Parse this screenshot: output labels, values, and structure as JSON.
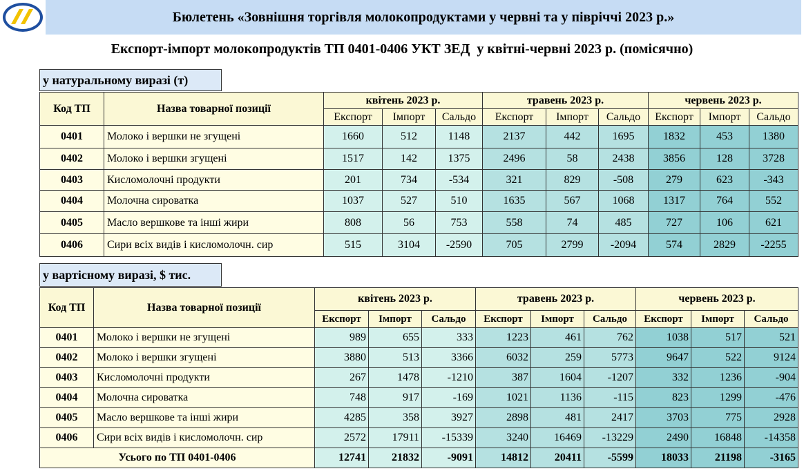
{
  "header": {
    "title": "Бюлетень «Зовнішня торгівля молокопродуктами у червні та у півріччі 2023 р.»"
  },
  "subtitle": "Експорт-імпорт молокопродуктів ТП 0401-0406 УКТ ЗЕД  у квітні-червні 2023 р. (помісячно)",
  "tables": [
    {
      "label": "у натуральному виразі (т)",
      "code_header": "Код ТП",
      "name_header": "Назва товарної позиції",
      "months": [
        "квітень 2023 р.",
        "травень 2023 р.",
        "червень 2023 р."
      ],
      "subcolumns": [
        "Експорт",
        "Імпорт",
        "Сальдо"
      ],
      "rows": [
        [
          "0401",
          "Молоко і вершки не згущені",
          1660,
          512,
          1148,
          2137,
          442,
          1695,
          1832,
          453,
          1380
        ],
        [
          "0402",
          "Молоко і вершки згущені",
          1517,
          142,
          1375,
          2496,
          58,
          2438,
          3856,
          128,
          3728
        ],
        [
          "0403",
          "Кисломолочні продукти",
          201,
          734,
          -534,
          321,
          829,
          -508,
          279,
          623,
          -343
        ],
        [
          "0404",
          "Молочна сироватка",
          1037,
          527,
          510,
          1635,
          567,
          1068,
          1317,
          764,
          552
        ],
        [
          "0405",
          "Масло вершкове та інші жири",
          808,
          56,
          753,
          558,
          74,
          485,
          727,
          106,
          621
        ],
        [
          "0406",
          "Сири всіх видів і кисломолочн. сир",
          515,
          3104,
          -2590,
          705,
          2799,
          -2094,
          574,
          2829,
          -2255
        ]
      ]
    },
    {
      "label": "у вартісному виразі, $ тис.",
      "code_header": "Код ТП",
      "name_header": "Назва товарної позиції",
      "months": [
        "квітень 2023 р.",
        "травень 2023 р.",
        "червень 2023 р."
      ],
      "subcolumns": [
        "Експорт",
        "Імпорт",
        "Сальдо"
      ],
      "rows": [
        [
          "0401",
          "Молоко і вершки не згущені",
          989,
          655,
          333,
          1223,
          461,
          762,
          1038,
          517,
          521
        ],
        [
          "0402",
          "Молоко і вершки згущені",
          3880,
          513,
          3366,
          6032,
          259,
          5773,
          9647,
          522,
          9124
        ],
        [
          "0403",
          "Кисломолочні продукти",
          267,
          1478,
          -1210,
          387,
          1604,
          -1207,
          332,
          1236,
          -904
        ],
        [
          "0404",
          "Молочна сироватка",
          748,
          917,
          -169,
          1021,
          1136,
          -115,
          823,
          1299,
          -476
        ],
        [
          "0405",
          "Масло вершкове та інші жири",
          4285,
          358,
          3927,
          2898,
          481,
          2417,
          3703,
          775,
          2928
        ],
        [
          "0406",
          "Сири всіх видів і кисломолочн. сир",
          2572,
          17911,
          -15339,
          3240,
          16469,
          -13229,
          2490,
          16848,
          -14358
        ]
      ],
      "total": {
        "label": "Усього по ТП 0401-0406",
        "values": [
          12741,
          21832,
          -9091,
          14812,
          20411,
          -5599,
          18033,
          21198,
          -3165
        ]
      }
    }
  ]
}
